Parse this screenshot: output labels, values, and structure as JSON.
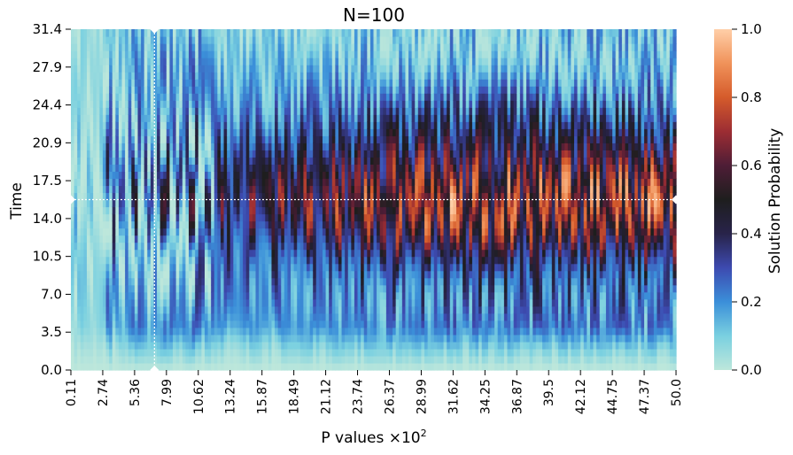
{
  "chart_data": {
    "type": "heatmap",
    "title": "N=100",
    "xlabel": "P values ×10",
    "xlabel_exponent": "2",
    "ylabel": "Time",
    "x_tick_labels": [
      "0.11",
      "2.74",
      "5.36",
      "7.99",
      "10.62",
      "13.24",
      "15.87",
      "18.49",
      "21.12",
      "23.74",
      "26.37",
      "28.99",
      "31.62",
      "34.25",
      "36.87",
      "39.5",
      "42.12",
      "44.75",
      "47.37",
      "50.0"
    ],
    "y_tick_labels": [
      "0.0",
      "3.5",
      "7.0",
      "10.5",
      "14.0",
      "17.5",
      "20.9",
      "24.4",
      "27.9",
      "31.4"
    ],
    "x_range": [
      0.11,
      50.0
    ],
    "y_range": [
      0.0,
      31.4
    ],
    "marker": {
      "p": 7.0,
      "time": 15.7
    },
    "colorbar": {
      "label": "Solution Probability",
      "ticks": [
        "0.0",
        "0.2",
        "0.4",
        "0.6",
        "0.8",
        "1.0"
      ],
      "range": [
        0.0,
        1.0
      ],
      "colormap": "icefire",
      "stops": [
        "#bde7db",
        "#7ad0e0",
        "#3b8fd9",
        "#3d4ab0",
        "#28234a",
        "#1e1e1e",
        "#4e1d36",
        "#9c2d33",
        "#d55b2b",
        "#f0925a",
        "#ffcfa8"
      ]
    },
    "grid": "off",
    "description": "Solution probability as a function of P value and time: low near time 0, rising to a bright band (about 0.8-1.0) near time 14-18 for larger P values, with oscillating stripes at small P."
  }
}
